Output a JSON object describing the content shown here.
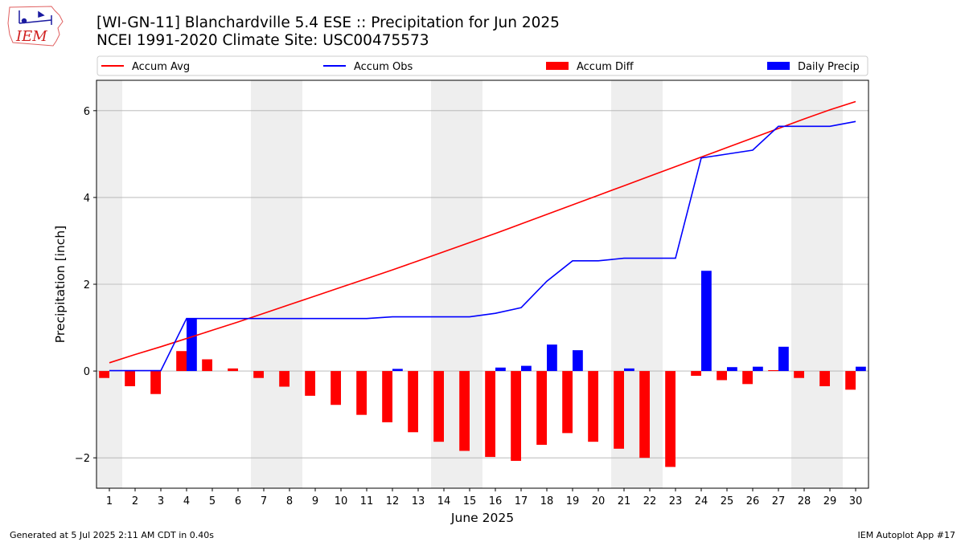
{
  "logo_text": "IEM",
  "title_line1": "[WI-GN-11] Blanchardville 5.4 ESE :: Precipitation for Jun 2025",
  "title_line2": "NCEI 1991-2020 Climate Site: USC00475573",
  "footer_left": "Generated at 5 Jul 2025 2:11 AM CDT in 0.40s",
  "footer_right": "IEM Autoplot App #17",
  "colors": {
    "avg": "#ff0000",
    "obs": "#0000ff",
    "diff": "#ff0000",
    "daily": "#0000ff",
    "weekend": "#eeeeee",
    "grid": "#b0b0b0"
  },
  "chart_data": {
    "type": "bar",
    "xlabel": "June 2025",
    "ylabel": "Precipitation [inch]",
    "ylim": [
      -2.7,
      6.7
    ],
    "yticks": [
      -2,
      0,
      2,
      4,
      6
    ],
    "ytick_labels": [
      "−2",
      "0",
      "2",
      "4",
      "6"
    ],
    "grid": "horizontal",
    "legend_placement": "top",
    "days": [
      1,
      2,
      3,
      4,
      5,
      6,
      7,
      8,
      9,
      10,
      11,
      12,
      13,
      14,
      15,
      16,
      17,
      18,
      19,
      20,
      21,
      22,
      23,
      24,
      25,
      26,
      27,
      28,
      29,
      30
    ],
    "shaded_days": [
      1,
      7,
      8,
      14,
      15,
      21,
      22,
      28,
      29
    ],
    "legend": [
      "Accum Avg",
      "Accum Obs",
      "Accum Diff",
      "Daily Precip"
    ],
    "series": [
      {
        "name": "Accum Avg",
        "kind": "line",
        "values": [
          0.19,
          0.38,
          0.56,
          0.75,
          0.94,
          1.13,
          1.33,
          1.53,
          1.73,
          1.93,
          2.13,
          2.33,
          2.54,
          2.75,
          2.96,
          3.17,
          3.39,
          3.61,
          3.83,
          4.05,
          4.27,
          4.49,
          4.71,
          4.93,
          5.15,
          5.37,
          5.59,
          5.81,
          6.02,
          6.21
        ]
      },
      {
        "name": "Accum Obs",
        "kind": "line",
        "values": [
          0.01,
          0.01,
          0.01,
          1.21,
          1.21,
          1.21,
          1.21,
          1.21,
          1.21,
          1.21,
          1.21,
          1.25,
          1.25,
          1.25,
          1.25,
          1.33,
          1.46,
          2.07,
          2.54,
          2.54,
          2.6,
          2.6,
          2.6,
          4.91,
          5.0,
          5.09,
          5.64,
          5.64,
          5.64,
          5.75
        ]
      },
      {
        "name": "Accum Diff",
        "kind": "bar",
        "values": [
          -0.16,
          -0.35,
          -0.53,
          0.46,
          0.27,
          0.06,
          -0.16,
          -0.36,
          -0.57,
          -0.78,
          -1.01,
          -1.18,
          -1.41,
          -1.63,
          -1.84,
          -1.98,
          -2.07,
          -1.7,
          -1.43,
          -1.63,
          -1.79,
          -2.0,
          -2.21,
          -0.11,
          -0.21,
          -0.3,
          0.02,
          -0.16,
          -0.35,
          -0.43
        ]
      },
      {
        "name": "Daily Precip",
        "kind": "bar",
        "values": [
          0.01,
          0.0,
          0.0,
          1.2,
          0.0,
          0.0,
          0.0,
          0.0,
          0.0,
          0.0,
          0.0,
          0.05,
          0.0,
          0.0,
          0.0,
          0.08,
          0.12,
          0.61,
          0.48,
          0.0,
          0.06,
          0.0,
          0.0,
          2.31,
          0.09,
          0.1,
          0.56,
          0.0,
          0.0,
          0.1
        ]
      }
    ]
  }
}
